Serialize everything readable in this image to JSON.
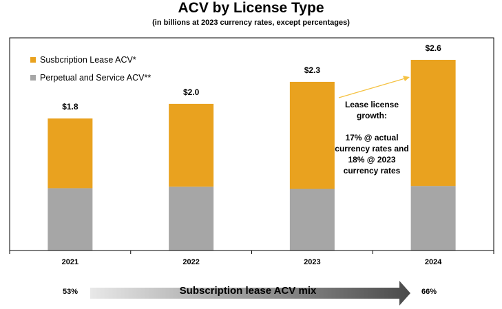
{
  "chart_data": {
    "type": "bar",
    "stacked": true,
    "title": "ACV by License Type",
    "subtitle": "(in billions at 2023 currency rates, except percentages)",
    "categories": [
      "2021",
      "2022",
      "2023",
      "2024"
    ],
    "series": [
      {
        "name": "Perpetual and Service ACV**",
        "color": "#a6a6a6",
        "values": [
          0.85,
          0.87,
          0.84,
          0.88
        ]
      },
      {
        "name": "Susbcription Lease ACV*",
        "color": "#e9a21f",
        "values": [
          0.95,
          1.13,
          1.46,
          1.72
        ]
      }
    ],
    "totals_labels": [
      "$1.8",
      "$2.0",
      "$2.3",
      "$2.6"
    ],
    "totals": [
      1.8,
      2.0,
      2.3,
      2.6
    ],
    "ylim": [
      0,
      2.9
    ],
    "grid": false,
    "legend_position": "top-left",
    "annotation": {
      "lines": [
        "Lease license",
        "growth:",
        "",
        "17% @ actual",
        "currency rates and",
        "18% @ 2023",
        "currency rates"
      ],
      "arrow_color": "#f5c242"
    },
    "mix": {
      "label": "Subscription lease ACV mix",
      "start": "53%",
      "end": "66%"
    }
  }
}
